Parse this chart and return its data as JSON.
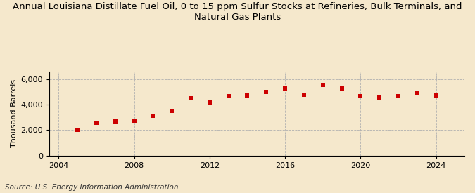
{
  "title": "Annual Louisiana Distillate Fuel Oil, 0 to 15 ppm Sulfur Stocks at Refineries, Bulk Terminals, and\nNatural Gas Plants",
  "ylabel": "Thousand Barrels",
  "source": "Source: U.S. Energy Information Administration",
  "background_color": "#f5e8cc",
  "plot_bg_color": "#f5e8cc",
  "marker_color": "#cc0000",
  "years": [
    2005,
    2006,
    2007,
    2008,
    2009,
    2010,
    2011,
    2012,
    2013,
    2014,
    2015,
    2016,
    2017,
    2018,
    2019,
    2020,
    2021,
    2022,
    2023,
    2024
  ],
  "values": [
    2000,
    2600,
    2700,
    2750,
    3100,
    3500,
    4500,
    4200,
    4650,
    4700,
    5000,
    5300,
    4800,
    5550,
    5250,
    4650,
    4550,
    4650,
    4900,
    4750
  ],
  "xlim": [
    2003.5,
    2025.5
  ],
  "ylim": [
    0,
    6600
  ],
  "yticks": [
    0,
    2000,
    4000,
    6000
  ],
  "xticks": [
    2004,
    2008,
    2012,
    2016,
    2020,
    2024
  ],
  "grid_color": "#b0b0b0",
  "title_fontsize": 9.5,
  "label_fontsize": 8,
  "tick_fontsize": 8,
  "source_fontsize": 7.5
}
